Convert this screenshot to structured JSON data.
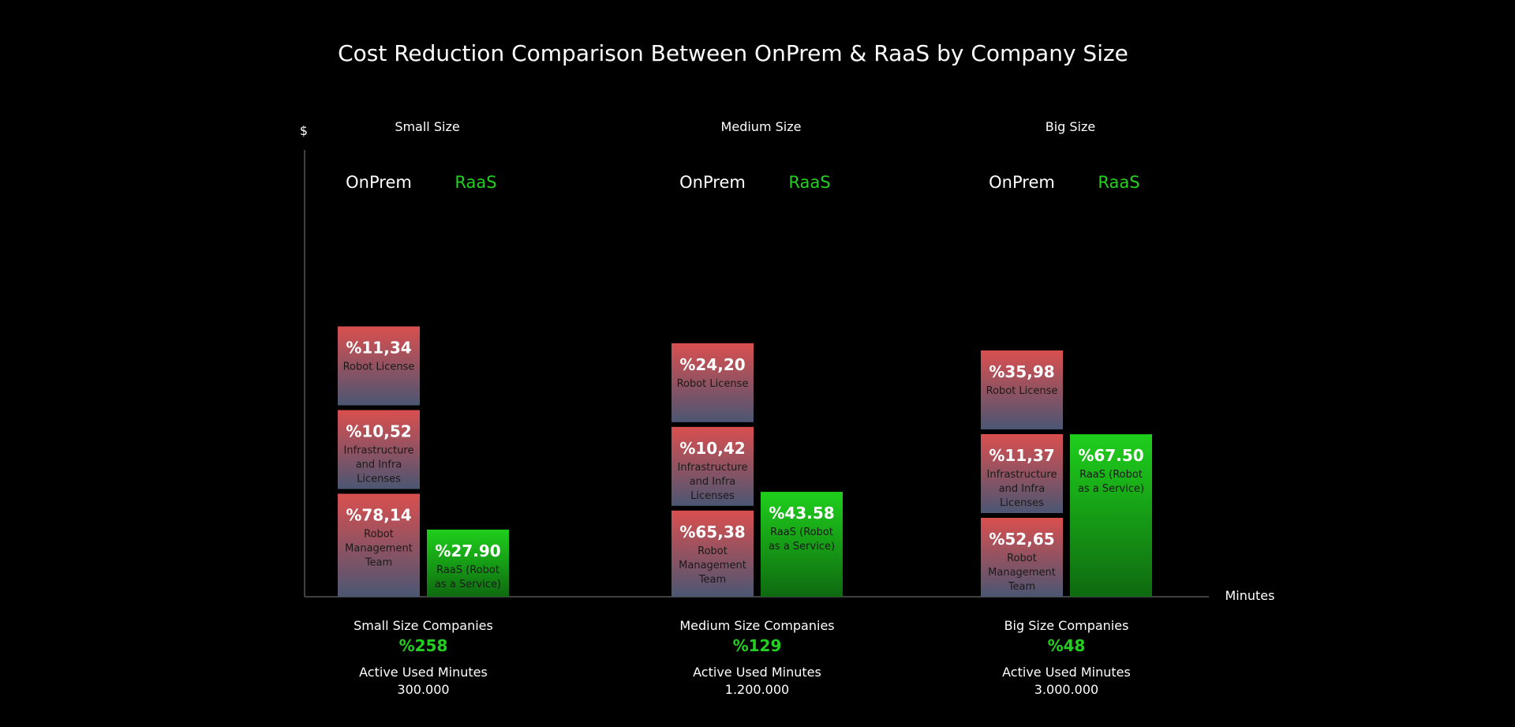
{
  "colors": {
    "background": "#000000",
    "onprem_top": "#d94f4f",
    "onprem_bottom": "#4b5673",
    "raas_top": "#1fcf1c",
    "raas_bottom": "#0e6a10",
    "raas_text": "#22d11f"
  },
  "chart_data": {
    "type": "bar",
    "title": "Cost Reduction Comparison Between OnPrem & RaaS  by Company Size",
    "ylabel": "$",
    "xlabel": "Minutes",
    "legend": [
      "OnPrem",
      "RaaS"
    ],
    "groups": [
      {
        "name": "Small Size",
        "onprem": [
          {
            "value": "%78,14",
            "label": "Robot Management Team",
            "num": 78.14
          },
          {
            "value": "%10,52",
            "label": "Infrastructure and Infra Licenses",
            "num": 10.52
          },
          {
            "value": "%11,34",
            "label": "Robot License",
            "num": 11.34
          }
        ],
        "raas": {
          "value": "%27.90",
          "label": "RaaS (Robot as a Service)",
          "num": 27.9
        },
        "footer": {
          "title": "Small Size Companies",
          "reduction": "%258",
          "minutes_label": "Active Used Minutes",
          "minutes": "300.000"
        }
      },
      {
        "name": "Medium Size",
        "onprem": [
          {
            "value": "%65,38",
            "label": "Robot Management Team",
            "num": 65.38
          },
          {
            "value": "%10,42",
            "label": "Infrastructure and Infra Licenses",
            "num": 10.42
          },
          {
            "value": "%24,20",
            "label": "Robot License",
            "num": 24.2
          }
        ],
        "raas": {
          "value": "%43.58",
          "label": "RaaS (Robot as a Service)",
          "num": 43.58
        },
        "footer": {
          "title": "Medium Size Companies",
          "reduction": "%129",
          "minutes_label": "Active Used Minutes",
          "minutes": "1.200.000"
        }
      },
      {
        "name": "Big Size",
        "onprem": [
          {
            "value": "%52,65",
            "label": "Robot Management Team",
            "num": 52.65
          },
          {
            "value": "%11,37",
            "label": "Infrastructure and Infra Licenses",
            "num": 11.37
          },
          {
            "value": "%35,98",
            "label": "Robot License",
            "num": 35.98
          }
        ],
        "raas": {
          "value": "%67.50",
          "label": "RaaS (Robot as a Service)",
          "num": 67.5
        },
        "footer": {
          "title": "Big Size Companies",
          "reduction": "%48",
          "minutes_label": "Active Used Minutes",
          "minutes": "3.000.000"
        }
      }
    ]
  }
}
